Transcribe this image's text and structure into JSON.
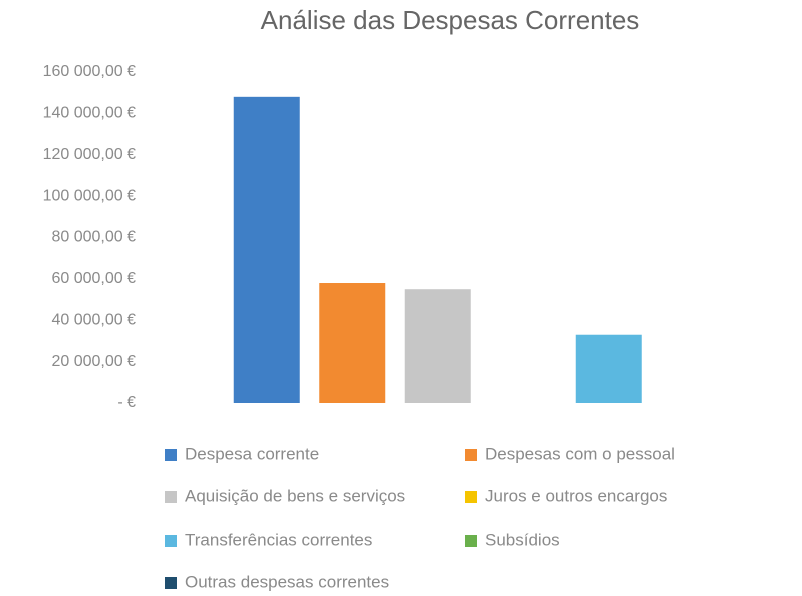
{
  "chart_data": {
    "type": "bar",
    "title": "Análise das Despesas Correntes",
    "categories": [
      "Despesa corrente",
      "Despesas com o pessoal",
      "Aquisição de bens e serviços",
      "Juros e outros encargos",
      "Transferências correntes",
      "Subsídios",
      "Outras despesas correntes"
    ],
    "values": [
      148000,
      58000,
      55000,
      0,
      33000,
      0,
      0
    ],
    "colors": [
      "#3f7fc6",
      "#f28a30",
      "#c6c6c6",
      "#f5c400",
      "#5bb8e0",
      "#6ab04c",
      "#1f4e6e"
    ],
    "ylim": [
      0,
      160000
    ],
    "yticks": [
      {
        "value": 0,
        "label": "-   €"
      },
      {
        "value": 20000,
        "label": "20 000,00 €"
      },
      {
        "value": 40000,
        "label": "40 000,00 €"
      },
      {
        "value": 60000,
        "label": "60 000,00 €"
      },
      {
        "value": 80000,
        "label": "80 000,00 €"
      },
      {
        "value": 100000,
        "label": "100 000,00 €"
      },
      {
        "value": 120000,
        "label": "120 000,00 €"
      },
      {
        "value": 140000,
        "label": "140 000,00 €"
      },
      {
        "value": 160000,
        "label": "160 000,00 €"
      }
    ],
    "grid": false
  }
}
